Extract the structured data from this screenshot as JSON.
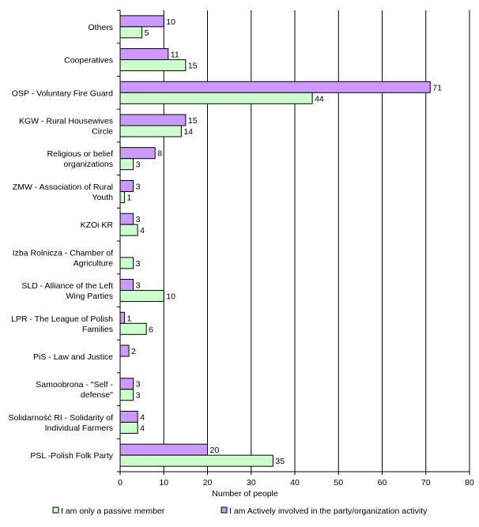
{
  "chart_data": {
    "type": "bar",
    "orientation": "horizontal",
    "title": "",
    "xlabel": "Number of people",
    "ylabel": "",
    "xlim": [
      0,
      80
    ],
    "xticks": [
      0,
      10,
      20,
      30,
      40,
      50,
      60,
      70,
      80
    ],
    "grid": true,
    "legend_position": "bottom",
    "categories": [
      [
        "Others"
      ],
      [
        "Cooperatives"
      ],
      [
        "OSP - Voluntary Fire Guard"
      ],
      [
        "KGW - Rural Housewives",
        "Circle"
      ],
      [
        "Religious or belief",
        "organizations"
      ],
      [
        "ZMW - Association of Rural",
        "Youth"
      ],
      [
        "KZOi KR"
      ],
      [
        "Izba Rolnicza - Chamber of",
        "Agriculture"
      ],
      [
        "SLD - Alliance of the Left",
        "Wing Parties"
      ],
      [
        "LPR - The League of Polish",
        "Families"
      ],
      [
        "PiS - Law and Justice"
      ],
      [
        "Samoobrona - \"Self -",
        "defense\""
      ],
      [
        "Solidarność RI - Solidarity of",
        "Individual Farmers"
      ],
      [
        "PSL -Polish Folk Party"
      ]
    ],
    "series": [
      {
        "name": "I am Actively involved in the party/organization activity",
        "color": "#cc99ff",
        "values": [
          10,
          11,
          71,
          15,
          8,
          3,
          3,
          null,
          3,
          1,
          2,
          3,
          4,
          20
        ]
      },
      {
        "name": "I am only a passive member",
        "color": "#ccffcc",
        "values": [
          5,
          15,
          44,
          14,
          3,
          1,
          4,
          3,
          10,
          6,
          null,
          3,
          4,
          35
        ]
      }
    ],
    "legend": [
      {
        "label": "I am only a passive member",
        "color": "#ccffcc"
      },
      {
        "label": "I am Actively involved in the party/organization activity",
        "color": "#cc99ff"
      }
    ]
  }
}
